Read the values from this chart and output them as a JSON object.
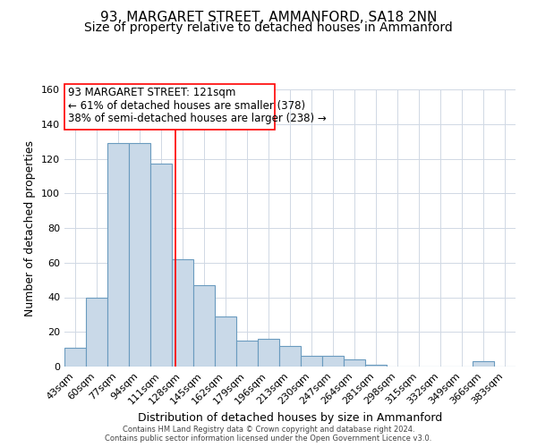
{
  "title": "93, MARGARET STREET, AMMANFORD, SA18 2NN",
  "subtitle": "Size of property relative to detached houses in Ammanford",
  "xlabel": "Distribution of detached houses by size in Ammanford",
  "ylabel": "Number of detached properties",
  "footer_line1": "Contains HM Land Registry data © Crown copyright and database right 2024.",
  "footer_line2": "Contains public sector information licensed under the Open Government Licence v3.0.",
  "bin_labels": [
    "43sqm",
    "60sqm",
    "77sqm",
    "94sqm",
    "111sqm",
    "128sqm",
    "145sqm",
    "162sqm",
    "179sqm",
    "196sqm",
    "213sqm",
    "230sqm",
    "247sqm",
    "264sqm",
    "281sqm",
    "298sqm",
    "315sqm",
    "332sqm",
    "349sqm",
    "366sqm",
    "383sqm"
  ],
  "bar_values": [
    11,
    40,
    129,
    129,
    117,
    62,
    47,
    29,
    15,
    16,
    12,
    6,
    6,
    4,
    1,
    0,
    0,
    0,
    0,
    3,
    0
  ],
  "bar_color": "#c9d9e8",
  "bar_edgecolor": "#6a9bbf",
  "bar_linewidth": 0.8,
  "vline_x": 4.65,
  "vline_color": "red",
  "vline_linewidth": 1.2,
  "ann_line1": "93 MARGARET STREET: 121sqm",
  "ann_line2": "← 61% of detached houses are smaller (378)",
  "ann_line3": "38% of semi-detached houses are larger (238) →",
  "ylim": [
    0,
    160
  ],
  "yticks": [
    0,
    20,
    40,
    60,
    80,
    100,
    120,
    140,
    160
  ],
  "bg_color": "#ffffff",
  "grid_color": "#d0d8e4",
  "title_fontsize": 11,
  "subtitle_fontsize": 10,
  "xlabel_fontsize": 9,
  "ylabel_fontsize": 9,
  "tick_fontsize": 8,
  "annotation_fontsize": 8.5,
  "footer_fontsize": 6
}
